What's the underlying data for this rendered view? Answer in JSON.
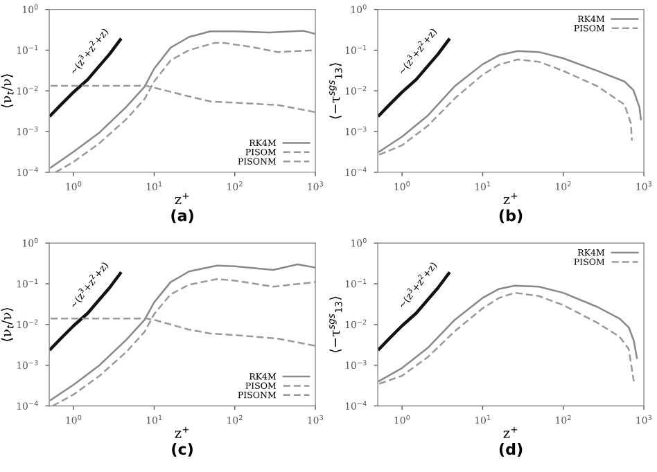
{
  "chart_data": [
    {
      "type": "line",
      "title": "(a)",
      "xlabel": "z$^{+}$",
      "ylabel": "⟨ν$_{t}$/ν⟩",
      "log": "xy",
      "xlim": [
        0.5,
        1000
      ],
      "ylim": [
        0.0001,
        1
      ],
      "xticks": [
        {
          "value": 1,
          "label": "10$^{0}$"
        },
        {
          "value": 10,
          "label": "10$^{1}$"
        },
        {
          "value": 100,
          "label": "10$^{2}$"
        },
        {
          "value": 1000,
          "label": "10$^{3}$"
        }
      ],
      "yticks": [
        {
          "value": 0.0001,
          "label": "10$^{−4}$"
        },
        {
          "value": 0.001,
          "label": "10$^{−3}$"
        },
        {
          "value": 0.01,
          "label": "10$^{−2}$"
        },
        {
          "value": 0.1,
          "label": "10$^{−1}$"
        },
        {
          "value": 1,
          "label": "10$^{0}$"
        }
      ],
      "legend": "bottom right",
      "grid": false,
      "annotations": [
        "∼(z$^{3}$+z$^{2}$+z)"
      ],
      "series": [
        {
          "color": "#111111",
          "line_style": "solid",
          "x": [
            0.52,
            0.7,
            1,
            1.5,
            2,
            2.8,
            3.8
          ],
          "values": [
            0.0025,
            0.0046,
            0.0093,
            0.019,
            0.037,
            0.08,
            0.18
          ]
        },
        {
          "name": "RK4M",
          "color": "#888888",
          "line_style": "solid",
          "x": [
            0.52,
            1,
            2.1,
            4.5,
            7.6,
            10,
            16,
            27,
            50,
            100,
            265,
            700,
            1000
          ],
          "values": [
            0.00013,
            0.00032,
            0.00095,
            0.004,
            0.0126,
            0.035,
            0.115,
            0.21,
            0.29,
            0.29,
            0.27,
            0.3,
            0.25
          ]
        },
        {
          "name": "PISOM",
          "color": "#999999",
          "line_style": "dashed",
          "x": [
            0.6,
            1,
            2.1,
            4.5,
            7.6,
            10,
            16,
            27,
            56,
            74,
            160,
            340,
            1000
          ],
          "values": [
            0.0001,
            0.00018,
            0.00052,
            0.002,
            0.0063,
            0.017,
            0.056,
            0.1,
            0.15,
            0.15,
            0.12,
            0.09,
            0.1
          ]
        },
        {
          "name": "PISONM",
          "color": "#999999",
          "line_style": "dashed",
          "x": [
            0.52,
            2,
            8,
            10,
            27,
            50,
            100,
            340,
            1000
          ],
          "values": [
            0.0133,
            0.0133,
            0.0133,
            0.012,
            0.0073,
            0.0055,
            0.0051,
            0.0045,
            0.003
          ]
        }
      ]
    },
    {
      "type": "line",
      "title": "(b)",
      "xlabel": "z$^{+}$",
      "ylabel": "⟨−τ$^{sgs}$$_{13}$⟩",
      "log": "xy",
      "xlim": [
        0.5,
        1000
      ],
      "ylim": [
        0.0001,
        1
      ],
      "xticks": [
        {
          "value": 1,
          "label": "10$^{0}$"
        },
        {
          "value": 10,
          "label": "10$^{1}$"
        },
        {
          "value": 100,
          "label": "10$^{2}$"
        },
        {
          "value": 1000,
          "label": "10$^{3}$"
        }
      ],
      "yticks": [
        {
          "value": 0.0001,
          "label": "10$^{−4}$"
        },
        {
          "value": 0.001,
          "label": "10$^{−3}$"
        },
        {
          "value": 0.01,
          "label": "10$^{−2}$"
        },
        {
          "value": 0.1,
          "label": "10$^{−1}$"
        },
        {
          "value": 1,
          "label": "10$^{0}$"
        }
      ],
      "legend": "top right",
      "grid": false,
      "annotations": [
        "∼(z$^{3}$+z$^{2}$+z)"
      ],
      "series": [
        {
          "color": "#111111",
          "line_style": "solid",
          "x": [
            0.52,
            0.7,
            1,
            1.5,
            2,
            2.8,
            3.8
          ],
          "values": [
            0.0025,
            0.0046,
            0.0093,
            0.019,
            0.037,
            0.08,
            0.18
          ]
        },
        {
          "name": "RK4M",
          "color": "#888888",
          "line_style": "solid",
          "x": [
            0.52,
            1,
            2.1,
            4.5,
            10,
            16,
            27,
            50,
            100,
            265,
            575,
            740,
            880,
            920
          ],
          "values": [
            0.00032,
            0.00075,
            0.0025,
            0.013,
            0.045,
            0.075,
            0.095,
            0.09,
            0.063,
            0.031,
            0.017,
            0.0105,
            0.004,
            0.002
          ]
        },
        {
          "name": "PISOM",
          "color": "#999999",
          "line_style": "dashed",
          "x": [
            0.52,
            1,
            2.1,
            4.5,
            10,
            16,
            27,
            50,
            100,
            265,
            575,
            690,
            710
          ],
          "values": [
            0.00027,
            0.00046,
            0.0014,
            0.0065,
            0.025,
            0.044,
            0.059,
            0.052,
            0.031,
            0.013,
            0.0046,
            0.0016,
            0.0006
          ]
        }
      ]
    },
    {
      "type": "line",
      "title": "(c)",
      "xlabel": "z$^{+}$",
      "ylabel": "⟨ν$_{t}$/ν⟩",
      "log": "xy",
      "xlim": [
        0.5,
        1000
      ],
      "ylim": [
        0.0001,
        1
      ],
      "xticks": [
        {
          "value": 1,
          "label": "10$^{0}$"
        },
        {
          "value": 10,
          "label": "10$^{1}$"
        },
        {
          "value": 100,
          "label": "10$^{2}$"
        },
        {
          "value": 1000,
          "label": "10$^{3}$"
        }
      ],
      "yticks": [
        {
          "value": 0.0001,
          "label": "10$^{−4}$"
        },
        {
          "value": 0.001,
          "label": "10$^{−3}$"
        },
        {
          "value": 0.01,
          "label": "10$^{−2}$"
        },
        {
          "value": 0.1,
          "label": "10$^{−1}$"
        },
        {
          "value": 1,
          "label": "10$^{0}$"
        }
      ],
      "legend": "bottom right",
      "grid": false,
      "annotations": [
        "∼(z$^{3}$+z$^{2}$+z)"
      ],
      "series": [
        {
          "color": "#111111",
          "line_style": "solid",
          "x": [
            0.52,
            0.7,
            1,
            1.5,
            2,
            2.8,
            3.8
          ],
          "values": [
            0.0025,
            0.0046,
            0.0093,
            0.019,
            0.037,
            0.08,
            0.18
          ]
        },
        {
          "name": "RK4M",
          "color": "#888888",
          "line_style": "solid",
          "x": [
            0.52,
            1,
            2.1,
            4.5,
            7.6,
            10,
            16,
            27,
            60,
            100,
            300,
            600,
            1000
          ],
          "values": [
            0.00014,
            0.00033,
            0.001,
            0.0042,
            0.013,
            0.035,
            0.11,
            0.2,
            0.28,
            0.27,
            0.22,
            0.3,
            0.25
          ]
        },
        {
          "name": "PISOM",
          "color": "#999999",
          "line_style": "dashed",
          "x": [
            0.55,
            1,
            2.1,
            4.5,
            7.6,
            10,
            16,
            27,
            60,
            100,
            300,
            1000
          ],
          "values": [
            0.0001,
            0.00019,
            0.00055,
            0.0021,
            0.0066,
            0.018,
            0.055,
            0.095,
            0.13,
            0.12,
            0.085,
            0.11
          ]
        },
        {
          "name": "PISONM",
          "color": "#999999",
          "line_style": "dashed",
          "x": [
            0.52,
            2,
            8,
            10,
            27,
            50,
            100,
            340,
            1000
          ],
          "values": [
            0.014,
            0.014,
            0.014,
            0.013,
            0.0075,
            0.006,
            0.0055,
            0.0045,
            0.003
          ]
        }
      ]
    },
    {
      "type": "line",
      "title": "(d)",
      "xlabel": "z$^{+}$",
      "ylabel": "⟨−τ$^{sgs}$$_{13}$⟩",
      "log": "xy",
      "xlim": [
        0.5,
        1000
      ],
      "ylim": [
        0.0001,
        1
      ],
      "xticks": [
        {
          "value": 1,
          "label": "10$^{0}$"
        },
        {
          "value": 10,
          "label": "10$^{1}$"
        },
        {
          "value": 100,
          "label": "10$^{2}$"
        },
        {
          "value": 1000,
          "label": "10$^{3}$"
        }
      ],
      "yticks": [
        {
          "value": 0.0001,
          "label": "10$^{−4}$"
        },
        {
          "value": 0.001,
          "label": "10$^{−3}$"
        },
        {
          "value": 0.01,
          "label": "10$^{−2}$"
        },
        {
          "value": 0.1,
          "label": "10$^{−1}$"
        },
        {
          "value": 1,
          "label": "10$^{0}$"
        }
      ],
      "legend": "top right",
      "grid": false,
      "annotations": [
        "∼(z$^{3}$+z$^{2}$+z)"
      ],
      "series": [
        {
          "color": "#111111",
          "line_style": "solid",
          "x": [
            0.52,
            0.7,
            1,
            1.5,
            2,
            2.8,
            3.8
          ],
          "values": [
            0.0025,
            0.0046,
            0.0093,
            0.019,
            0.037,
            0.08,
            0.18
          ]
        },
        {
          "name": "RK4M",
          "color": "#888888",
          "line_style": "solid",
          "x": [
            0.52,
            1,
            2.1,
            4.5,
            10,
            16,
            25,
            50,
            100,
            265,
            500,
            650,
            750,
            820
          ],
          "values": [
            0.00041,
            0.00085,
            0.0027,
            0.013,
            0.045,
            0.075,
            0.09,
            0.085,
            0.06,
            0.027,
            0.014,
            0.0085,
            0.004,
            0.0015
          ]
        },
        {
          "name": "PISOM",
          "color": "#999999",
          "line_style": "dashed",
          "x": [
            0.52,
            1,
            2.1,
            4.5,
            10,
            16,
            25,
            50,
            100,
            265,
            500,
            650,
            750
          ],
          "values": [
            0.00035,
            0.00055,
            0.0016,
            0.0068,
            0.025,
            0.045,
            0.06,
            0.05,
            0.03,
            0.011,
            0.005,
            0.0025,
            0.0004
          ]
        }
      ]
    }
  ]
}
